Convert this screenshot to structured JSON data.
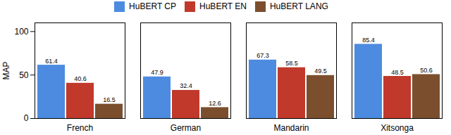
{
  "chart_data": {
    "type": "bar",
    "categories": [
      "French",
      "German",
      "Mandarin",
      "Xitsonga"
    ],
    "series": [
      {
        "name": "HuBERT CP",
        "color": "#4C8BE0",
        "values": [
          61.4,
          47.9,
          67.3,
          85.4
        ]
      },
      {
        "name": "HuBERT EN",
        "color": "#C0392B",
        "values": [
          40.6,
          32.4,
          58.5,
          48.5
        ]
      },
      {
        "name": "HuBERT LANG",
        "color": "#7B4F2E",
        "values": [
          16.5,
          12.6,
          49.5,
          50.6
        ]
      }
    ],
    "ylabel": "MAP",
    "ylim": [
      0,
      110
    ],
    "yticks": [
      0,
      50,
      100
    ],
    "data_labels": true,
    "legend": "top",
    "grid": false
  }
}
